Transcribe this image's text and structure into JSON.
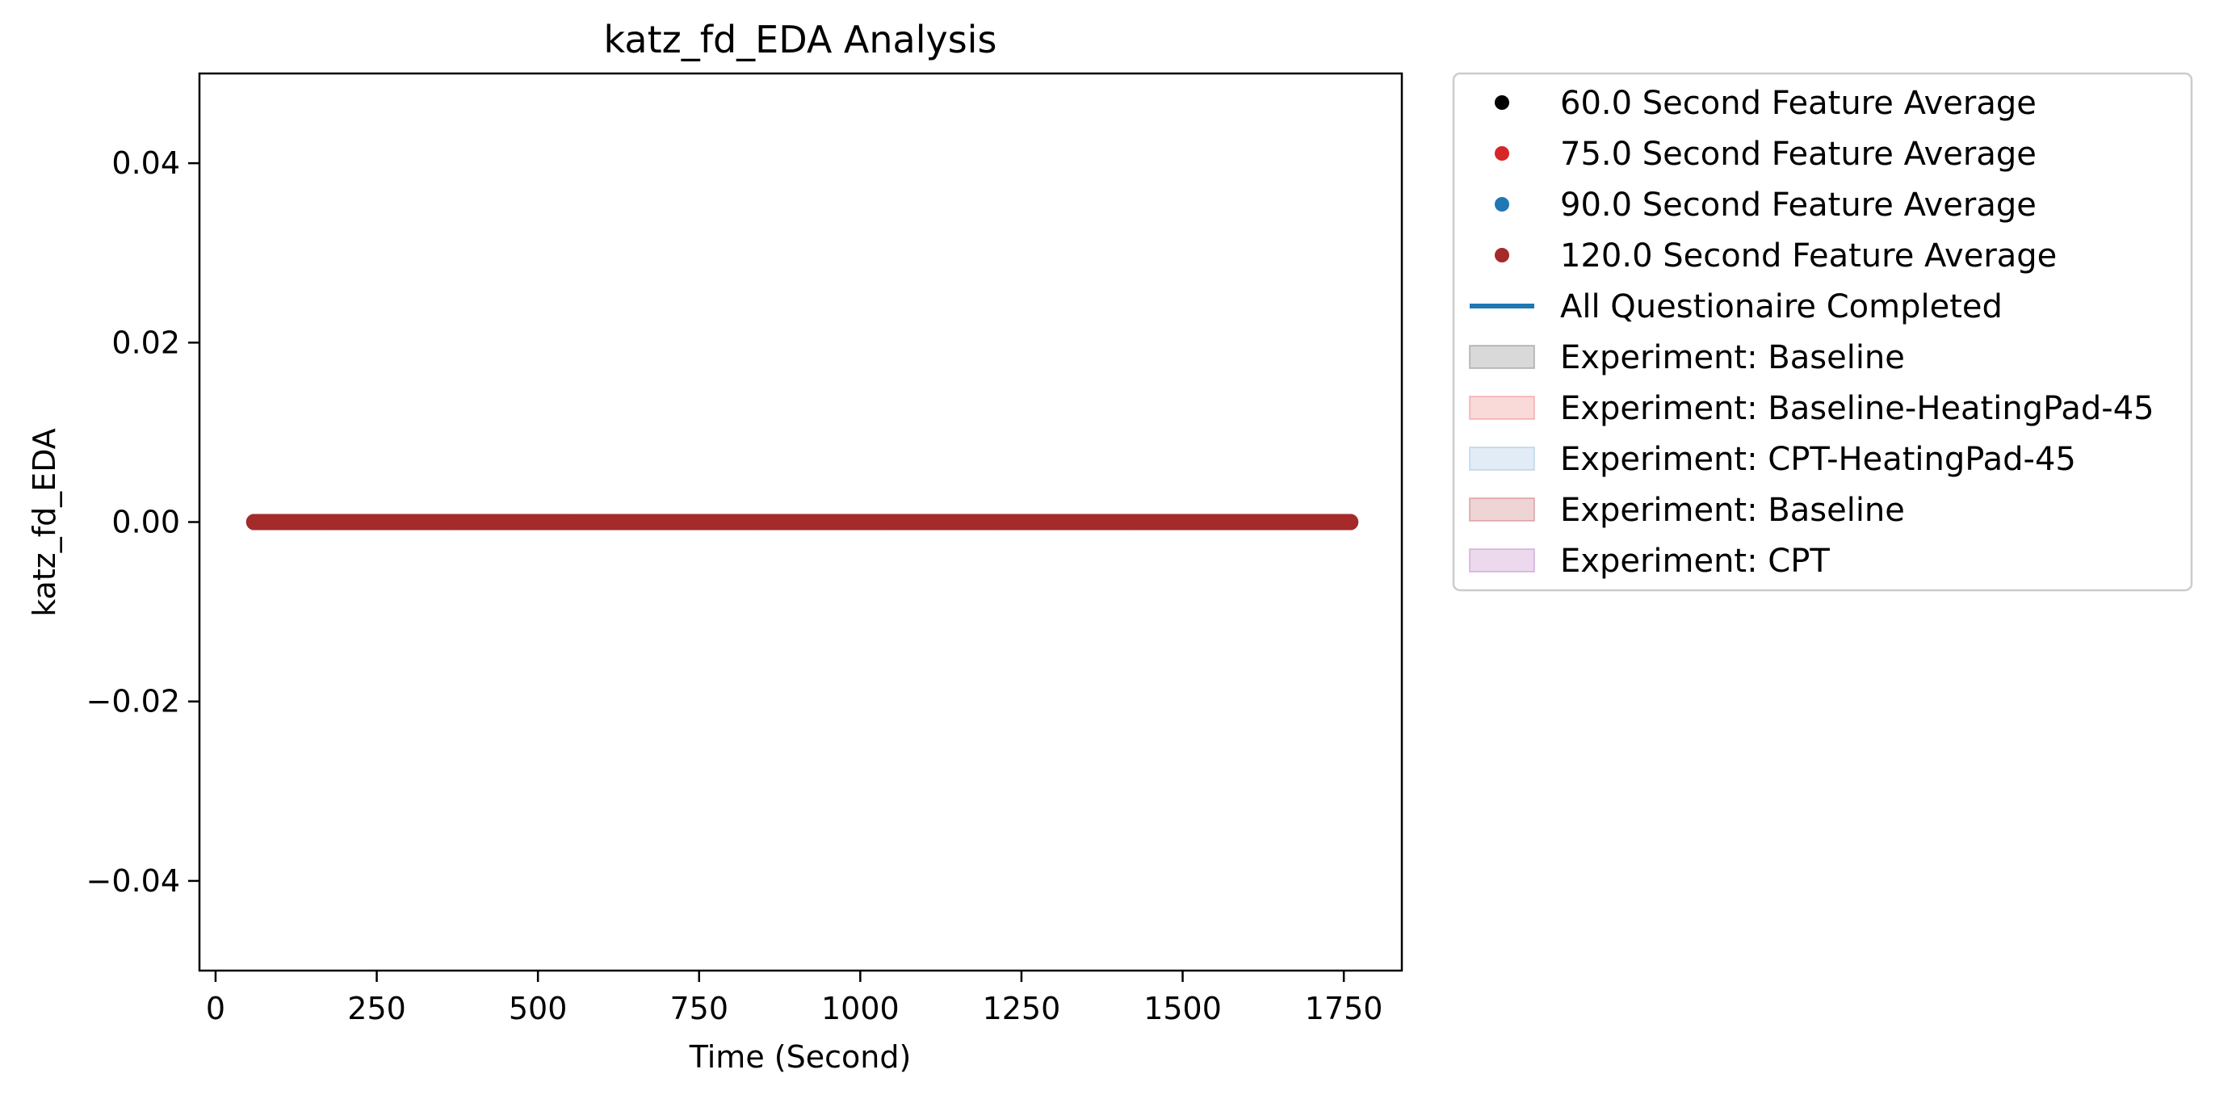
{
  "chart_data": {
    "type": "scatter",
    "title": "katz_fd_EDA Analysis",
    "xlabel": "Time (Second)",
    "ylabel": "katz_fd_EDA",
    "xlim": [
      -25,
      1840
    ],
    "ylim": [
      -0.05,
      0.05
    ],
    "x_ticks": [
      0,
      250,
      500,
      750,
      1000,
      1250,
      1500,
      1750
    ],
    "y_ticks": [
      0.04,
      0.02,
      0.0,
      -0.02,
      -0.04
    ],
    "y_tick_labels": [
      "0.04",
      "0.02",
      "0.00",
      "−0.02",
      "−0.04"
    ],
    "grid": false,
    "legend_position": "outside-right-top",
    "series": [
      {
        "name": "60.0 Second Feature Average",
        "color": "#000000",
        "x_start": 60,
        "x_end": 1760,
        "x_step": 5,
        "y": 0.0
      },
      {
        "name": "75.0 Second Feature Average",
        "color": "#d62728",
        "x_start": 60,
        "x_end": 1760,
        "x_step": 5,
        "y": 0.0
      },
      {
        "name": "90.0 Second Feature Average",
        "color": "#1f77b4",
        "x_start": 60,
        "x_end": 1760,
        "x_step": 5,
        "y": 0.0
      },
      {
        "name": "120.0 Second Feature Average",
        "color": "#a52a2a",
        "x_start": 60,
        "x_end": 1760,
        "x_step": 5,
        "y": 0.0
      }
    ],
    "legend": [
      {
        "label": "60.0 Second Feature Average",
        "kind": "marker",
        "color": "#000000"
      },
      {
        "label": "75.0 Second Feature Average",
        "kind": "marker",
        "color": "#d62728"
      },
      {
        "label": "90.0 Second Feature Average",
        "kind": "marker",
        "color": "#1f77b4"
      },
      {
        "label": "120.0 Second Feature Average",
        "kind": "marker",
        "color": "#a52a2a"
      },
      {
        "label": "All Questionaire Completed",
        "kind": "line",
        "color": "#1f77b4"
      },
      {
        "label": "Experiment: Baseline",
        "kind": "patch",
        "color": "#808080"
      },
      {
        "label": "Experiment: Baseline-HeatingPad-45",
        "kind": "patch",
        "color": "#f08080"
      },
      {
        "label": "Experiment: CPT-HeatingPad-45",
        "kind": "patch",
        "color": "#9ac0e0"
      },
      {
        "label": "Experiment: Baseline",
        "kind": "patch",
        "color": "#c87070"
      },
      {
        "label": "Experiment: CPT",
        "kind": "patch",
        "color": "#c080c8"
      }
    ]
  }
}
